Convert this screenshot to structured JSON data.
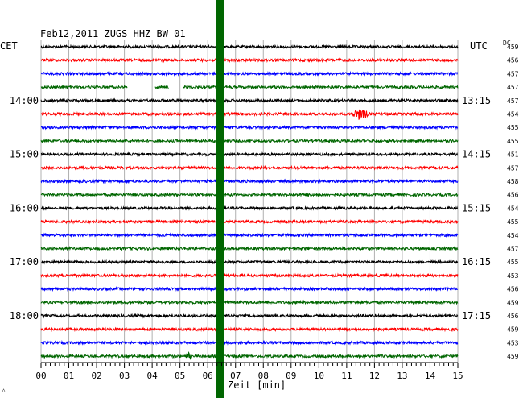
{
  "header": {
    "title": "Feb12,2011   ZUGS HHZ BW 01",
    "left_zone": "CET",
    "right_zone": "UTC",
    "dc_label": "DC",
    "corner_mark": "˄"
  },
  "colors": {
    "trace_cycle": [
      "#000000",
      "#ff0000",
      "#0000ff",
      "#006600"
    ],
    "marker": "#006600",
    "grid": "#b0b0b0"
  },
  "chart_data": {
    "type": "line",
    "subtype": "helicorder",
    "xlabel": "Zeit [min]",
    "xlim": [
      0,
      15
    ],
    "x_ticks": [
      "00",
      "01",
      "02",
      "03",
      "04",
      "05",
      "06",
      "07",
      "08",
      "09",
      "10",
      "11",
      "12",
      "13",
      "14",
      "15"
    ],
    "grid": true,
    "rows": 24,
    "left_time_labels": [
      {
        "row": 4,
        "text": "14:00"
      },
      {
        "row": 8,
        "text": "15:00"
      },
      {
        "row": 12,
        "text": "16:00"
      },
      {
        "row": 16,
        "text": "17:00"
      },
      {
        "row": 20,
        "text": "18:00"
      }
    ],
    "right_time_labels": [
      {
        "row": 4,
        "text": "13:15"
      },
      {
        "row": 8,
        "text": "14:15"
      },
      {
        "row": 12,
        "text": "15:15"
      },
      {
        "row": 16,
        "text": "16:15"
      },
      {
        "row": 20,
        "text": "17:15"
      }
    ],
    "dc_offsets": [
      "459",
      "456",
      "457",
      "457",
      "457",
      "454",
      "455",
      "455",
      "451",
      "457",
      "458",
      "456",
      "454",
      "455",
      "454",
      "457",
      "455",
      "453",
      "456",
      "459",
      "456",
      "459",
      "453",
      "459"
    ],
    "data_gaps": [
      {
        "row": 3,
        "x_start_min": 3.1,
        "x_end_min": 4.1
      },
      {
        "row": 3,
        "x_start_min": 4.6,
        "x_end_min": 5.1
      }
    ],
    "events": [
      {
        "row": 5,
        "x_min": 11.5,
        "amplitude": "large"
      },
      {
        "row": 23,
        "x_min": 5.3,
        "amplitude": "small"
      }
    ],
    "vertical_marker": {
      "x_min": 6.45,
      "label": "time marker"
    }
  }
}
